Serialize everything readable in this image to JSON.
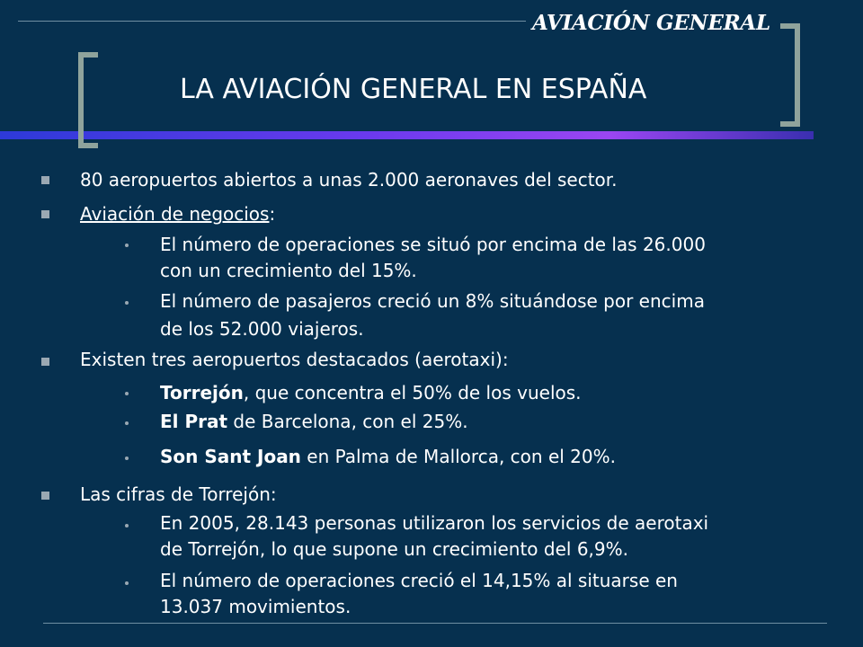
{
  "header": {
    "section_label": "AVIACIÓN GENERAL",
    "title": "LA AVIACIÓN GENERAL EN ESPAÑA"
  },
  "bullets": {
    "b1": "80 aeropuertos abiertos a unas 2.000 aeronaves del sector.",
    "b2": {
      "link": "Aviación de negocios",
      "suffix": ":"
    },
    "b2_1": {
      "line1": "El número de operaciones se situó por encima de las 26.000",
      "line2": "con un crecimiento del 15%."
    },
    "b2_2": {
      "line1": "El número de pasajeros creció un 8% situándose por encima",
      "line2": "de los 52.000 viajeros."
    },
    "b3": "Existen tres aeropuertos destacados (aerotaxi):",
    "b3_1": {
      "bold": "Torrejón",
      "rest": ", que concentra el 50% de los vuelos."
    },
    "b3_2": {
      "bold": "El Prat",
      "rest": " de Barcelona, con el 25%."
    },
    "b3_3": {
      "bold": "Son Sant Joan",
      "rest": " en Palma de Mallorca, con el 20%."
    },
    "b4": "Las cifras de Torrejón:",
    "b4_1": {
      "line1": "En 2005, 28.143 personas utilizaron los servicios de aerotaxi",
      "line2": "de Torrejón, lo que supone un crecimiento del 6,9%."
    },
    "b4_2": {
      "line1": "El número de operaciones creció el 14,15% al situarse en",
      "line2": "13.037 movimientos."
    }
  },
  "colors": {
    "background": "#06304f",
    "accent_bar": "#6a3aee",
    "bracket": "#8fa39c",
    "bullet": "#9aa8b3"
  }
}
